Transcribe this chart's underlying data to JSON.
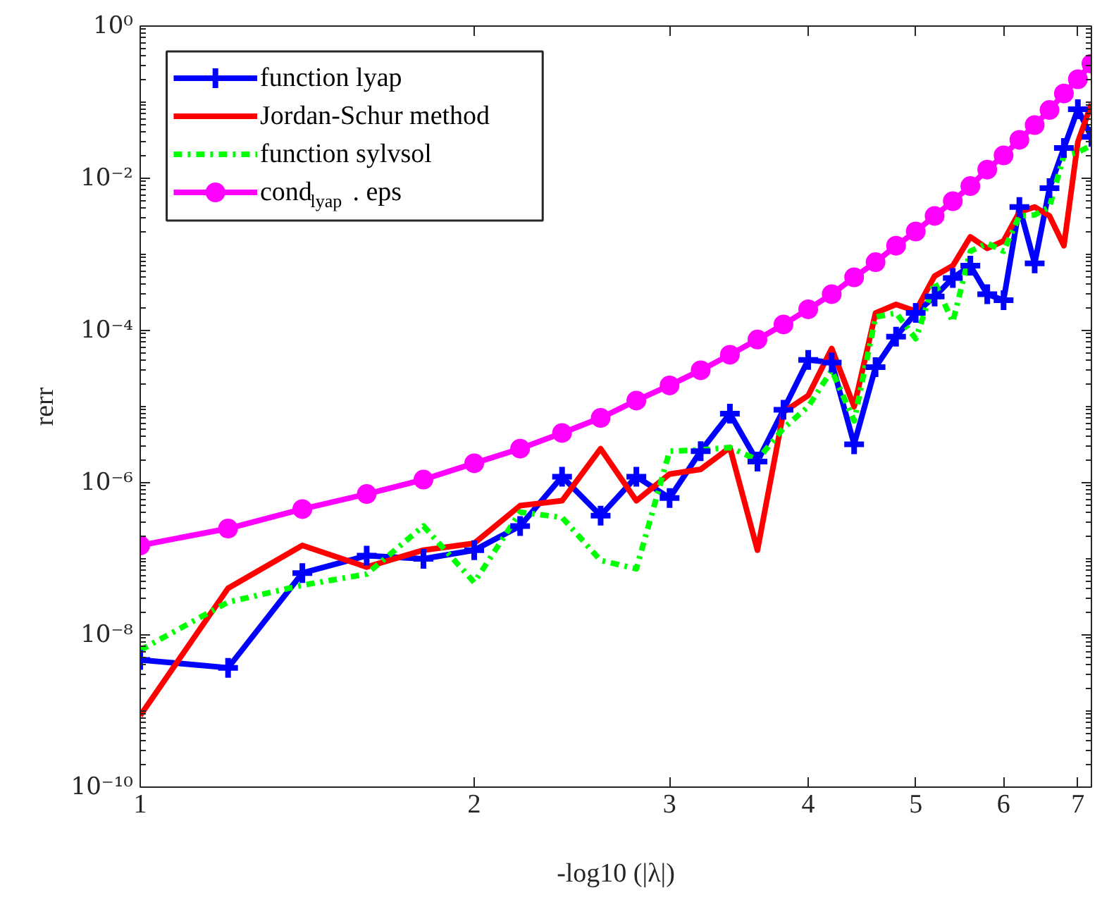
{
  "chart_data": {
    "type": "line",
    "xlabel": "-log10 (|λ|)",
    "ylabel": "rerr",
    "log": "xy",
    "legend": "top left",
    "xlim": [
      1,
      7.2
    ],
    "ylim": [
      1e-10,
      1
    ],
    "xticks": [
      1,
      2,
      3,
      4,
      5,
      6,
      7
    ],
    "yticks": [
      {
        "value": 1e-10,
        "label": "10⁻¹⁰"
      },
      {
        "value": 1e-08,
        "label": "10⁻⁸"
      },
      {
        "value": 1e-06,
        "label": "10⁻⁶"
      },
      {
        "value": 0.0001,
        "label": "10⁻⁴"
      },
      {
        "value": 0.01,
        "label": "10⁻²"
      },
      {
        "value": 1,
        "label": "10⁰"
      }
    ],
    "x": [
      1,
      1.2,
      1.4,
      1.6,
      1.8,
      2.0,
      2.2,
      2.4,
      2.6,
      2.8,
      3.0,
      3.2,
      3.4,
      3.6,
      3.8,
      4.0,
      4.2,
      4.4,
      4.6,
      4.8,
      5.0,
      5.2,
      5.4,
      5.6,
      5.8,
      6.0,
      6.2,
      6.4,
      6.6,
      6.8,
      7.0,
      7.2
    ],
    "series": [
      {
        "name": "function lyap",
        "color": "#0000ff",
        "marker": "cross",
        "line_style": "solid",
        "values": [
          4.7e-09,
          3.7e-09,
          6.5e-08,
          1.1e-07,
          1e-07,
          1.3e-07,
          2.7e-07,
          1.2e-06,
          3.7e-07,
          1.2e-06,
          6.3e-07,
          2.6e-06,
          8.1e-06,
          1.9e-06,
          9.1e-06,
          4.1e-05,
          3.8e-05,
          3.2e-06,
          3.3e-05,
          8.3e-05,
          0.00017,
          0.00028,
          0.00049,
          0.00071,
          0.0003,
          0.00025,
          0.0042,
          0.00076,
          0.0074,
          0.025,
          0.081,
          0.035
        ]
      },
      {
        "name": "Jordan-Schur method",
        "color": "#ff0000",
        "marker": "none",
        "line_style": "solid",
        "values": [
          8.7e-10,
          4.1e-08,
          1.5e-07,
          7.8e-08,
          1.3e-07,
          1.6e-07,
          5e-07,
          5.8e-07,
          2.8e-06,
          5.8e-07,
          1.3e-06,
          1.5e-06,
          2.9e-06,
          1.3e-07,
          8.5e-06,
          1.4e-05,
          5.8e-05,
          1e-05,
          0.00017,
          0.00022,
          0.00018,
          0.00052,
          0.00071,
          0.0017,
          0.0012,
          0.0015,
          0.0036,
          0.0042,
          0.0032,
          0.0013,
          0.03,
          0.095
        ]
      },
      {
        "name": "function sylvsol",
        "color": "#00ff00",
        "marker": "none",
        "line_style": "dashdot",
        "values": [
          6.3e-09,
          2.7e-08,
          4.5e-08,
          6.3e-08,
          2.7e-07,
          4.9e-08,
          4.1e-07,
          3.5e-07,
          9.5e-08,
          7.4e-08,
          2.6e-06,
          2.7e-06,
          2.9e-06,
          2e-06,
          5.2e-06,
          1e-05,
          3e-05,
          6.5e-06,
          0.00015,
          0.00017,
          7.8e-05,
          0.00043,
          0.00013,
          0.0011,
          0.0014,
          0.0011,
          0.0032,
          0.0033,
          0.0042,
          0.02,
          0.022,
          0.027
        ]
      },
      {
        "name": "cond$_{lyap}$ . eps",
        "color": "#ff00ff",
        "marker": "circle",
        "line_style": "solid",
        "values": [
          1.5e-07,
          2.5e-07,
          4.5e-07,
          7.1e-07,
          1.1e-06,
          1.8e-06,
          2.8e-06,
          4.5e-06,
          7.1e-06,
          1.2e-05,
          1.9e-05,
          3e-05,
          4.8e-05,
          7.6e-05,
          0.00012,
          0.00019,
          0.0003,
          0.0005,
          0.00079,
          0.0013,
          0.002,
          0.0032,
          0.005,
          0.0079,
          0.013,
          0.02,
          0.032,
          0.05,
          0.079,
          0.13,
          0.2,
          0.32
        ]
      }
    ]
  }
}
